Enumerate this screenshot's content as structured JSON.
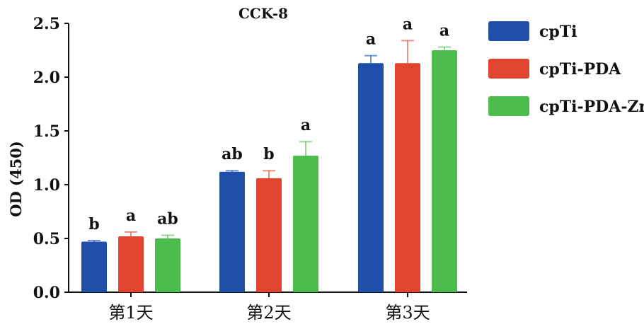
{
  "chart_data": {
    "type": "bar",
    "title": "CCK-8",
    "xlabel": "",
    "ylabel": "OD (450)",
    "ylim": [
      0,
      2.5
    ],
    "yticks": [
      "0.0",
      "0.5",
      "1.0",
      "1.5",
      "2.0",
      "2.5"
    ],
    "categories": [
      "第1天",
      "第2天",
      "第3天"
    ],
    "legend_position": "right",
    "series": [
      {
        "name": "cpTi",
        "color": "#1f4fa8",
        "values": [
          0.47,
          1.12,
          2.13
        ],
        "errors": [
          0.01,
          0.01,
          0.07
        ],
        "labels": [
          "b",
          "ab",
          "a"
        ]
      },
      {
        "name": "cpTi-PDA",
        "color": "#e2452f",
        "values": [
          0.52,
          1.06,
          2.13
        ],
        "errors": [
          0.04,
          0.07,
          0.21
        ],
        "labels": [
          "a",
          "b",
          "a"
        ]
      },
      {
        "name": "cpTi-PDA-Zn",
        "color": "#4cbd4c",
        "values": [
          0.5,
          1.27,
          2.25
        ],
        "errors": [
          0.03,
          0.13,
          0.03
        ],
        "labels": [
          "ab",
          "a",
          "a"
        ]
      }
    ]
  }
}
